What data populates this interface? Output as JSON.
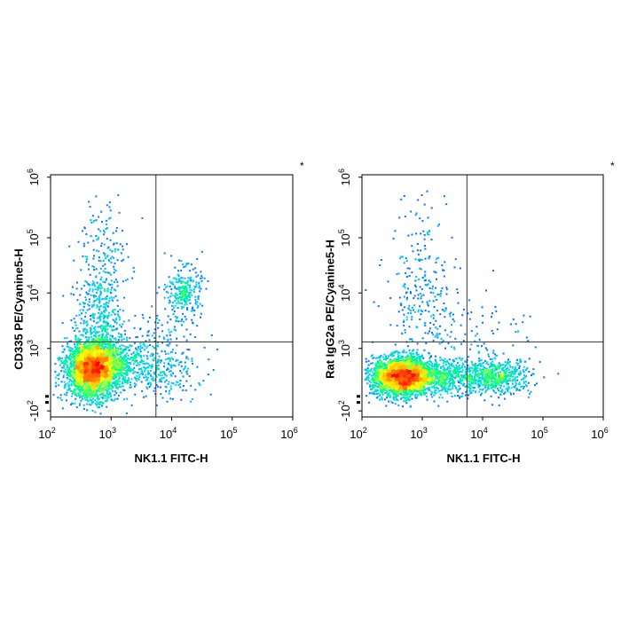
{
  "chart_data": [
    {
      "type": "scatter",
      "subtype": "flow-cytometry-density-dot-plot",
      "title": "",
      "xlabel": "NK1.1 FITC-H",
      "ylabel": "CD335 PE/Cyanine5-H",
      "annotation": "*",
      "x_scale": "biexponential",
      "y_scale": "biexponential",
      "xlim": [
        100,
        1000000
      ],
      "ylim": [
        -100,
        1000000
      ],
      "x_ticks": [
        {
          "base": "10",
          "exp": "2"
        },
        {
          "base": "10",
          "exp": "3"
        },
        {
          "base": "10",
          "exp": "4"
        },
        {
          "base": "10",
          "exp": "5"
        },
        {
          "base": "10",
          "exp": "6"
        }
      ],
      "y_ticks": [
        {
          "base": "-10",
          "exp": "2"
        },
        {
          "base": "10",
          "exp": "3"
        },
        {
          "base": "10",
          "exp": "4"
        },
        {
          "base": "10",
          "exp": "5"
        },
        {
          "base": "10",
          "exp": "6"
        }
      ],
      "quadrant_gate": {
        "x": 5500,
        "y": 1300
      },
      "populations": [
        {
          "label": "NK1.1- CD335-",
          "center": [
            400,
            400
          ],
          "relative_density": "very high"
        },
        {
          "label": "NK1.1- CD335+ smear",
          "center": [
            450,
            6000
          ],
          "relative_density": "low"
        },
        {
          "label": "NK1.1+ CD335+",
          "center": [
            9000,
            7000
          ],
          "relative_density": "medium"
        },
        {
          "label": "NK1.1+ CD335- tail",
          "center": [
            8000,
            400
          ],
          "relative_density": "low"
        }
      ],
      "color_scale": [
        "#0000ff",
        "#00c8ff",
        "#00ff80",
        "#ffff00",
        "#ff8000",
        "#ff0000"
      ]
    },
    {
      "type": "scatter",
      "subtype": "flow-cytometry-density-dot-plot",
      "title": "",
      "xlabel": "NK1.1 FITC-H",
      "ylabel": "Rat IgG2a PE/Cyanine5-H",
      "annotation": "*",
      "x_scale": "biexponential",
      "y_scale": "biexponential",
      "xlim": [
        100,
        1000000
      ],
      "ylim": [
        -100,
        1000000
      ],
      "x_ticks": [
        {
          "base": "10",
          "exp": "2"
        },
        {
          "base": "10",
          "exp": "3"
        },
        {
          "base": "10",
          "exp": "4"
        },
        {
          "base": "10",
          "exp": "5"
        },
        {
          "base": "10",
          "exp": "6"
        }
      ],
      "y_ticks": [
        {
          "base": "-10",
          "exp": "2"
        },
        {
          "base": "10",
          "exp": "3"
        },
        {
          "base": "10",
          "exp": "4"
        },
        {
          "base": "10",
          "exp": "5"
        },
        {
          "base": "10",
          "exp": "6"
        }
      ],
      "quadrant_gate": {
        "x": 5500,
        "y": 1300
      },
      "populations": [
        {
          "label": "NK1.1- isotype-",
          "center": [
            420,
            300
          ],
          "relative_density": "very high"
        },
        {
          "label": "NK1.1+ isotype-",
          "center": [
            9000,
            300
          ],
          "relative_density": "medium"
        },
        {
          "label": "background smear",
          "center": [
            1200,
            8000
          ],
          "relative_density": "low"
        }
      ],
      "color_scale": [
        "#0000ff",
        "#00c8ff",
        "#00ff80",
        "#ffff00",
        "#ff8000",
        "#ff0000"
      ]
    }
  ]
}
